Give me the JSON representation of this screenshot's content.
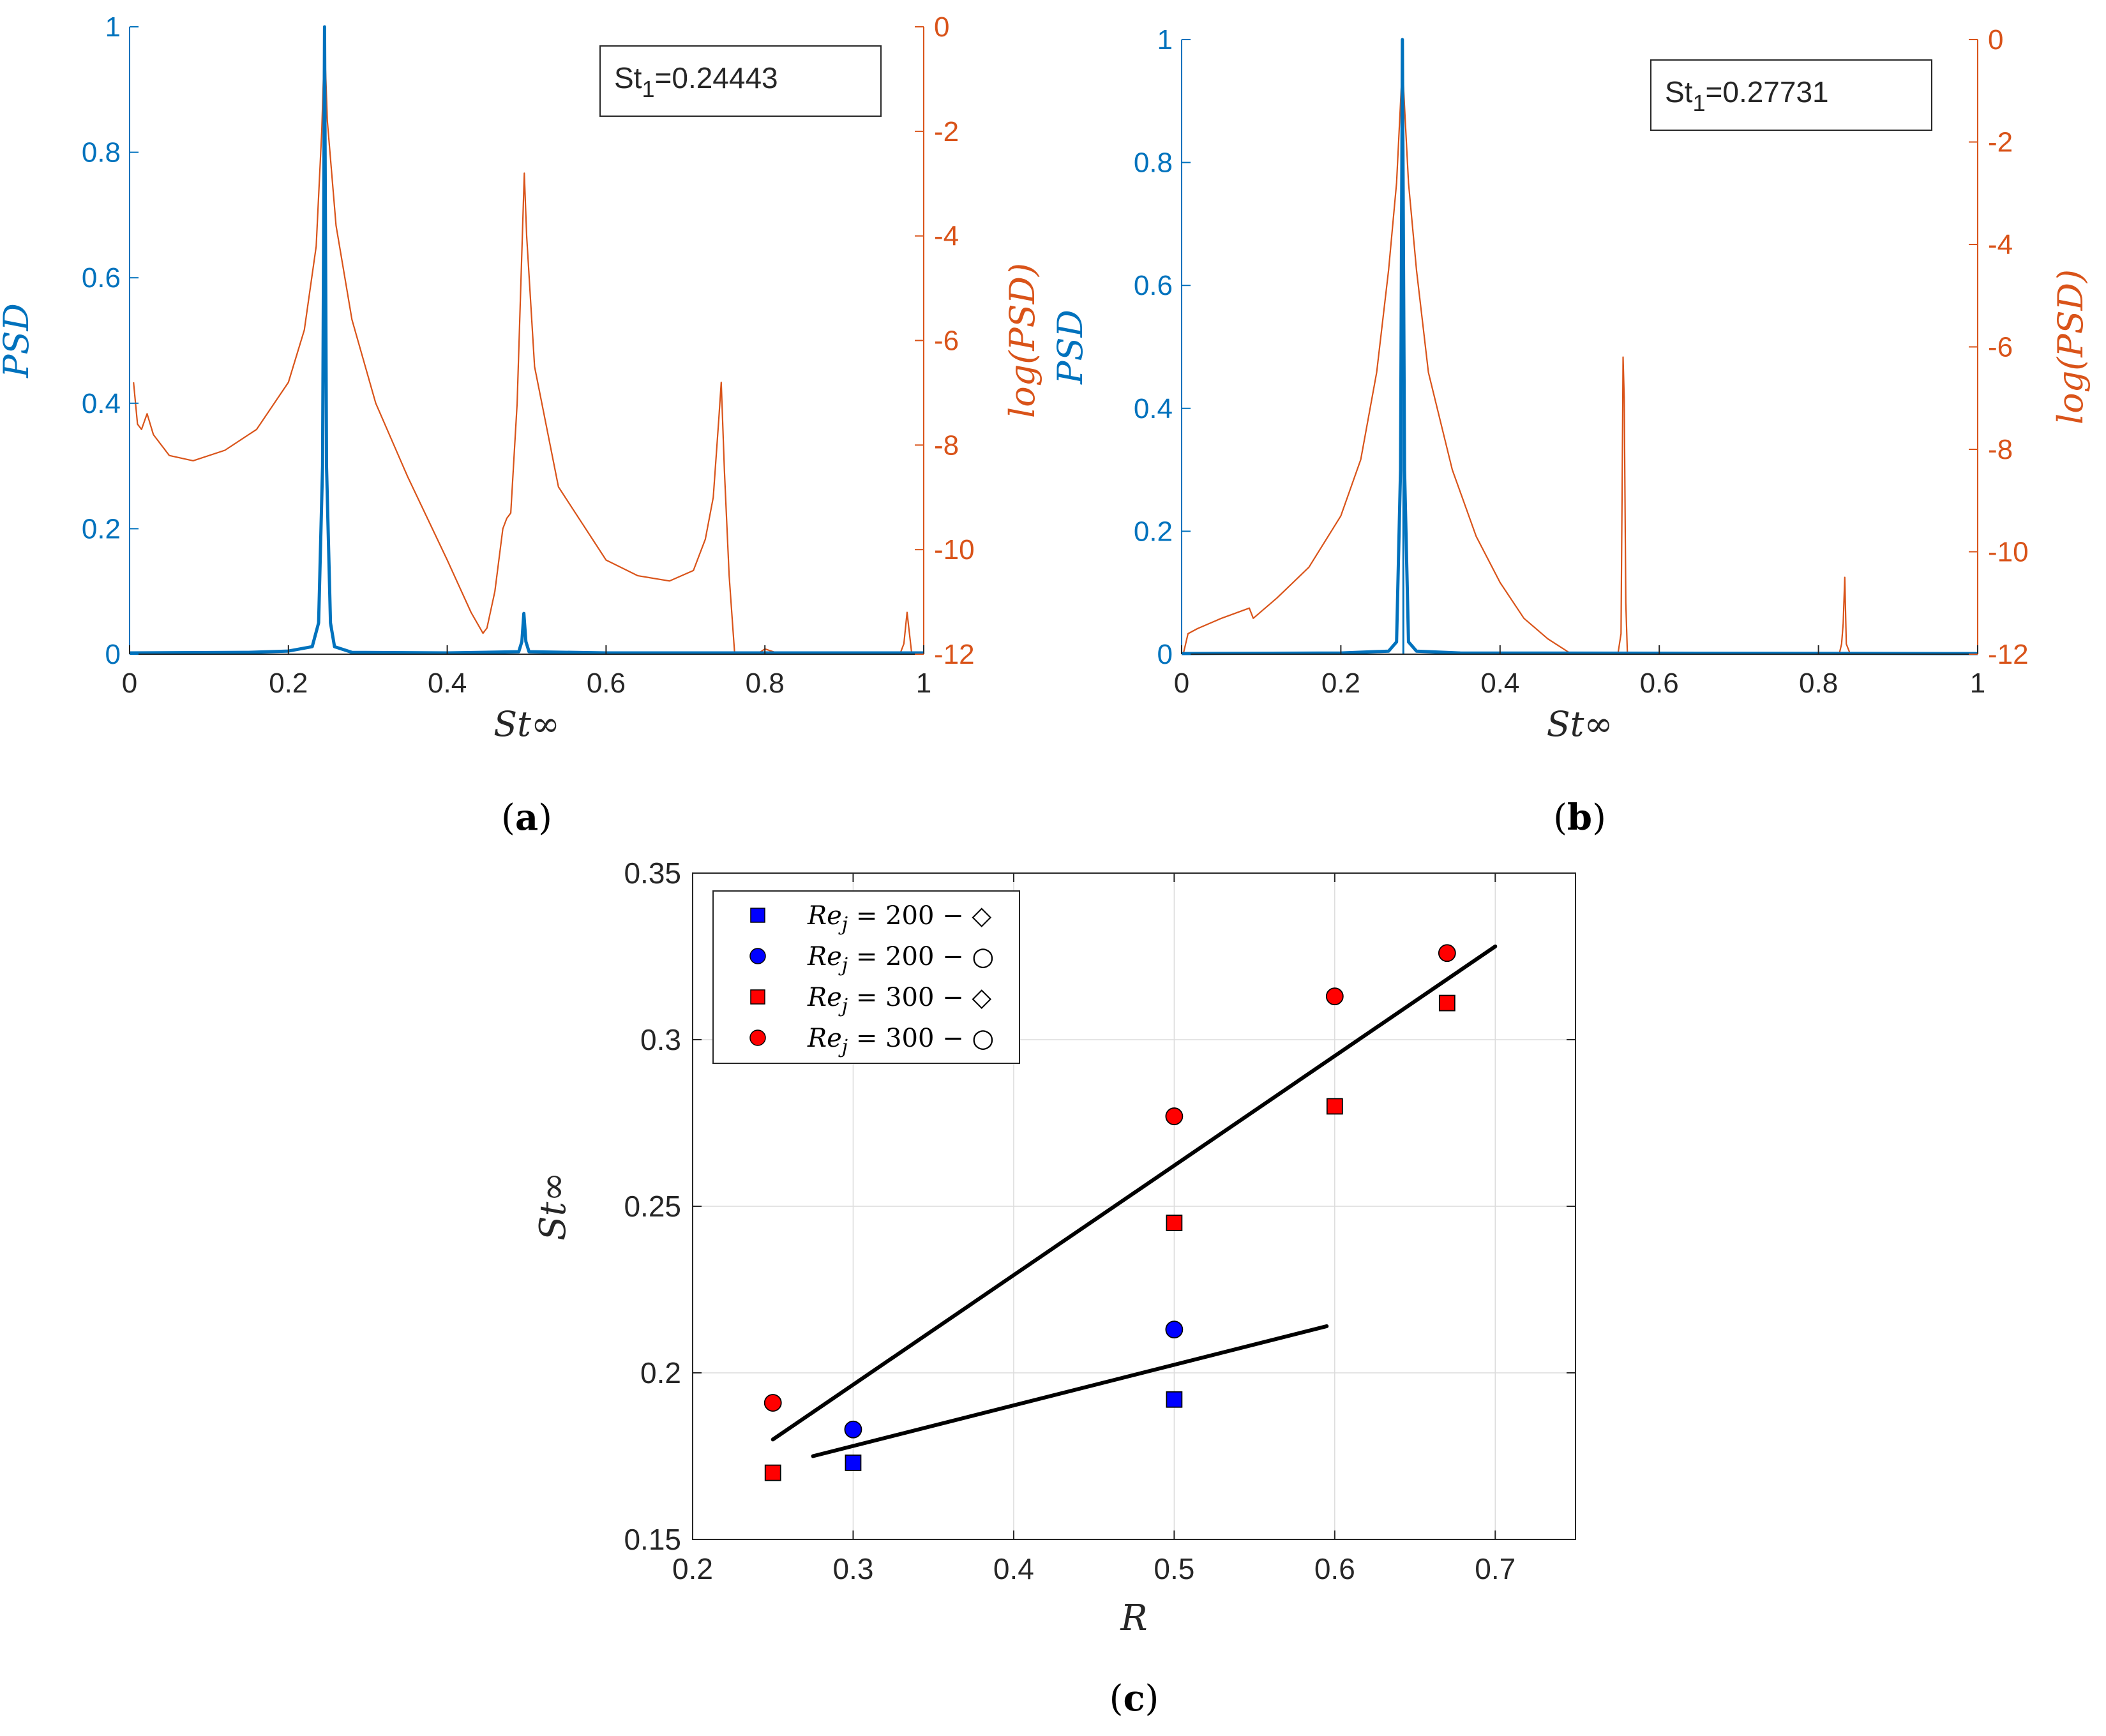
{
  "colors": {
    "psd": "#0072BD",
    "logpsd": "#D95319",
    "axis": "#262626",
    "grid": "#dcdcdc",
    "blue_marker": "#0000FF",
    "red_marker": "#FF0000",
    "fit": "#000000"
  },
  "chart_data": [
    {
      "id": "a",
      "type": "line",
      "panel_label": "(a)",
      "annotation": "St₁=0.24443",
      "annotation_parts": {
        "base": "St",
        "sub": "1",
        "rest": "=0.24443"
      },
      "xlabel": "St∞",
      "ylabel_left": "PSD",
      "ylabel_right": "log(PSD)",
      "xlim": [
        0,
        1
      ],
      "ylim_left": [
        0,
        1
      ],
      "ylim_right": [
        -12,
        0
      ],
      "xticks": [
        "0",
        "0.2",
        "0.4",
        "0.6",
        "0.8",
        "1"
      ],
      "yticks_left": [
        "0",
        "0.2",
        "0.4",
        "0.6",
        "0.8",
        "1"
      ],
      "yticks_right": [
        "-12",
        "-10",
        "-8",
        "-6",
        "-4",
        "-2",
        "0"
      ],
      "series": [
        {
          "name": "PSD",
          "axis": "left",
          "x": [
            0,
            0.15,
            0.2,
            0.23,
            0.238,
            0.243,
            0.2455,
            0.248,
            0.253,
            0.258,
            0.28,
            0.4,
            0.49,
            0.494,
            0.4965,
            0.499,
            0.503,
            0.6,
            1.0
          ],
          "y": [
            0.002,
            0.003,
            0.005,
            0.012,
            0.05,
            0.3,
            1.0,
            0.3,
            0.05,
            0.012,
            0.003,
            0.002,
            0.004,
            0.02,
            0.065,
            0.02,
            0.004,
            0.002,
            0.002
          ]
        },
        {
          "name": "log(PSD)",
          "axis": "right",
          "x": [
            0.005,
            0.01,
            0.015,
            0.022,
            0.03,
            0.05,
            0.08,
            0.12,
            0.16,
            0.2,
            0.22,
            0.235,
            0.242,
            0.2455,
            0.249,
            0.26,
            0.28,
            0.31,
            0.35,
            0.4,
            0.43,
            0.445,
            0.45,
            0.46,
            0.47,
            0.475,
            0.48,
            0.488,
            0.494,
            0.497,
            0.5,
            0.51,
            0.54,
            0.6,
            0.64,
            0.68,
            0.71,
            0.725,
            0.735,
            0.742,
            0.745,
            0.749,
            0.755,
            0.762,
            0.768,
            0.79,
            0.8,
            0.82,
            0.97,
            0.975,
            0.979,
            0.982,
            0.985
          ],
          "y": [
            -6.8,
            -7.6,
            -7.7,
            -7.4,
            -7.8,
            -8.2,
            -8.3,
            -8.1,
            -7.7,
            -6.8,
            -5.8,
            -4.2,
            -2.0,
            -0.3,
            -1.8,
            -3.8,
            -5.6,
            -7.2,
            -8.6,
            -10.2,
            -11.2,
            -11.6,
            -11.5,
            -10.8,
            -9.6,
            -9.4,
            -9.3,
            -7.2,
            -4.3,
            -2.8,
            -4.0,
            -6.5,
            -8.8,
            -10.2,
            -10.5,
            -10.6,
            -10.4,
            -9.8,
            -9.0,
            -7.5,
            -6.8,
            -8.5,
            -10.5,
            -12.0,
            -12.0,
            -12.0,
            -11.9,
            -12.0,
            -12.0,
            -11.8,
            -11.2,
            -11.6,
            -12.0
          ]
        }
      ]
    },
    {
      "id": "b",
      "type": "line",
      "panel_label": "(b)",
      "annotation": "St₁=0.27731",
      "annotation_parts": {
        "base": "St",
        "sub": "1",
        "rest": "=0.27731"
      },
      "xlabel": "St∞",
      "ylabel_left": "PSD",
      "ylabel_right": "log(PSD)",
      "xlim": [
        0,
        1
      ],
      "ylim_left": [
        0,
        1
      ],
      "ylim_right": [
        -12,
        0
      ],
      "xticks": [
        "0",
        "0.2",
        "0.4",
        "0.6",
        "0.8",
        "1"
      ],
      "yticks_left": [
        "0",
        "0.2",
        "0.4",
        "0.6",
        "0.8",
        "1"
      ],
      "yticks_right": [
        "-12",
        "-10",
        "-8",
        "-6",
        "-4",
        "-2",
        "0"
      ],
      "series": [
        {
          "name": "PSD",
          "axis": "left",
          "x": [
            0,
            0.2,
            0.26,
            0.27,
            0.275,
            0.2773,
            0.28,
            0.285,
            0.295,
            0.35,
            1.0
          ],
          "y": [
            0.001,
            0.002,
            0.005,
            0.02,
            0.3,
            1.0,
            0.3,
            0.02,
            0.005,
            0.002,
            0.001
          ],
          "extra_spike": {
            "x": 0.2785,
            "y": 0.86
          }
        },
        {
          "name": "log(PSD)",
          "axis": "right",
          "x": [
            0.002,
            0.008,
            0.02,
            0.05,
            0.085,
            0.09,
            0.12,
            0.16,
            0.2,
            0.225,
            0.245,
            0.26,
            0.27,
            0.2773,
            0.285,
            0.295,
            0.31,
            0.34,
            0.37,
            0.4,
            0.43,
            0.46,
            0.49,
            0.5,
            0.548,
            0.552,
            0.554,
            0.5545,
            0.556,
            0.558,
            0.56,
            0.826,
            0.829,
            0.831,
            0.833,
            0.835,
            0.84
          ],
          "y": [
            -12.0,
            -11.6,
            -11.5,
            -11.3,
            -11.1,
            -11.3,
            -10.9,
            -10.3,
            -9.3,
            -8.2,
            -6.5,
            -4.5,
            -2.8,
            -0.5,
            -2.8,
            -4.5,
            -6.5,
            -8.4,
            -9.7,
            -10.6,
            -11.3,
            -11.7,
            -12.0,
            -12.0,
            -12.0,
            -11.6,
            -7.5,
            -6.2,
            -7.0,
            -11.0,
            -12.0,
            -12.0,
            -11.8,
            -11.4,
            -10.5,
            -11.8,
            -12.0
          ]
        }
      ]
    },
    {
      "id": "c",
      "type": "scatter",
      "panel_label": "(c)",
      "xlabel": "R",
      "ylabel": "St∞",
      "xlim": [
        0.2,
        0.75
      ],
      "ylim": [
        0.15,
        0.35
      ],
      "xticks": [
        "0.2",
        "0.3",
        "0.4",
        "0.5",
        "0.6",
        "0.7"
      ],
      "yticks": [
        "0.15",
        "0.2",
        "0.25",
        "0.3",
        "0.35"
      ],
      "grid": true,
      "legend_position": "top-left",
      "series": [
        {
          "name": "Re_j = 200 − ◇",
          "label_main": "Re",
          "label_sub": "j",
          "label_rest": " = 200 − ◇",
          "marker": "square",
          "color": "#0000FF",
          "x": [
            0.3,
            0.5
          ],
          "y": [
            0.173,
            0.192
          ]
        },
        {
          "name": "Re_j = 200 − ○",
          "label_main": "Re",
          "label_sub": "j",
          "label_rest": " = 200 − ○",
          "marker": "circle",
          "color": "#0000FF",
          "x": [
            0.3,
            0.5
          ],
          "y": [
            0.183,
            0.213
          ]
        },
        {
          "name": "Re_j = 300 − ◇",
          "label_main": "Re",
          "label_sub": "j",
          "label_rest": " = 300 − ◇",
          "marker": "square",
          "color": "#FF0000",
          "x": [
            0.25,
            0.5,
            0.6,
            0.67
          ],
          "y": [
            0.17,
            0.245,
            0.28,
            0.311
          ]
        },
        {
          "name": "Re_j = 300 − ○",
          "label_main": "Re",
          "label_sub": "j",
          "label_rest": " = 300 − ○",
          "marker": "circle",
          "color": "#FF0000",
          "x": [
            0.25,
            0.5,
            0.6,
            0.67
          ],
          "y": [
            0.191,
            0.277,
            0.313,
            0.326
          ]
        }
      ],
      "fit_lines": [
        {
          "x": [
            0.25,
            0.7
          ],
          "y": [
            0.18,
            0.328
          ]
        },
        {
          "x": [
            0.275,
            0.595
          ],
          "y": [
            0.175,
            0.214
          ]
        }
      ]
    }
  ]
}
